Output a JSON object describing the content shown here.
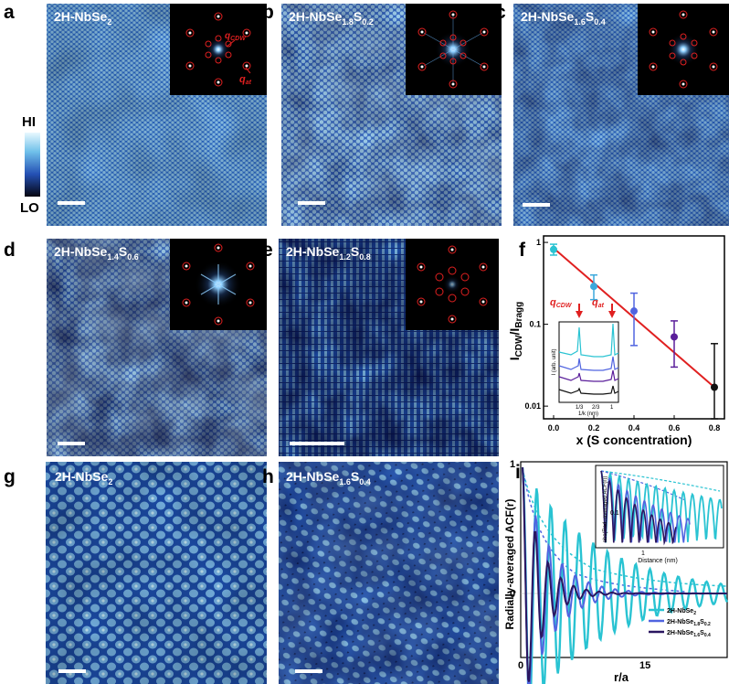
{
  "panel_labels": {
    "a": "a",
    "b": "b",
    "c": "c",
    "d": "d",
    "e": "e",
    "f": "f",
    "g": "g",
    "h": "h",
    "i": "i"
  },
  "colors": {
    "stm_dark": "#0d1530",
    "stm_mid": "#2a64c8",
    "stm_light": "#9fd8f0",
    "red": "#e02020",
    "cyan": "#29c3d2",
    "blue": "#5064e0",
    "indigo": "#3a1a8a",
    "purple": "#5a1e9a",
    "black": "#111111"
  },
  "images": {
    "a": {
      "title_main": "2H-NbSe",
      "title_sub": "2"
    },
    "b": {
      "title_main": "2H-NbSe",
      "title_sub1": "1.8",
      "title_mid": "S",
      "title_sub2": "0.2"
    },
    "c": {
      "title_main": "2H-NbSe",
      "title_sub1": "1.6",
      "title_mid": "S",
      "title_sub2": "0.4"
    },
    "d": {
      "title_main": "2H-NbSe",
      "title_sub1": "1.4",
      "title_mid": "S",
      "title_sub2": "0.6"
    },
    "e": {
      "title_main": "2H-NbSe",
      "title_sub1": "1.2",
      "title_mid": "S",
      "title_sub2": "0.8"
    },
    "g": {
      "title_main": "2H-NbSe",
      "title_sub": "2"
    },
    "h": {
      "title_main": "2H-NbSe",
      "title_sub1": "1.6",
      "title_mid": "S",
      "title_sub2": "0.4"
    }
  },
  "inset_a": {
    "q_cdw_main": "q",
    "q_cdw_sub": "CDW",
    "q_at_main": "q",
    "q_at_sub": "at"
  },
  "colorbar": {
    "hi": "HI",
    "lo": "LO"
  },
  "chart_data": [
    {
      "panel": "f",
      "type": "scatter",
      "xlabel": "x (S concentration)",
      "ylabel_main": "I",
      "ylabel_sub1": "CDW",
      "ylabel_mid": "/I",
      "ylabel_sub2": "Bragg",
      "xscale": "linear",
      "yscale": "log",
      "xlim": [
        -0.05,
        0.85
      ],
      "ylim": [
        0.007,
        1.2
      ],
      "xticks": [
        "0.0",
        "0.2",
        "0.4",
        "0.6",
        "0.8"
      ],
      "yticks": [
        "1",
        "0.1",
        "0.01"
      ],
      "points": [
        {
          "x": 0.0,
          "y": 0.82,
          "err_lo": 0.7,
          "err_hi": 0.95,
          "color": "#29c3d2"
        },
        {
          "x": 0.2,
          "y": 0.29,
          "err_lo": 0.2,
          "err_hi": 0.4,
          "color": "#3ba8dc"
        },
        {
          "x": 0.4,
          "y": 0.145,
          "err_lo": 0.055,
          "err_hi": 0.24,
          "color": "#5064e0"
        },
        {
          "x": 0.6,
          "y": 0.07,
          "err_lo": 0.03,
          "err_hi": 0.11,
          "color": "#5a1e9a"
        },
        {
          "x": 0.8,
          "y": 0.017,
          "err_lo": 0.007,
          "err_hi": 0.058,
          "color": "#111111"
        }
      ],
      "fit_line": {
        "x": [
          0.0,
          0.8
        ],
        "y": [
          0.85,
          0.017
        ],
        "color": "#e02020"
      },
      "inset": {
        "ylabel": "I (arb. unit)",
        "xlabel": "1/k (nm)",
        "xticks": [
          "1/3",
          "2/3",
          "1"
        ],
        "arrow_cdw_main": "q",
        "arrow_cdw_sub": "CDW",
        "arrow_at_main": "q",
        "arrow_at_sub": "at"
      }
    },
    {
      "panel": "i",
      "type": "line",
      "xlabel": "r/a",
      "ylabel": "Radially-averaged ACF(r)",
      "xticks": [
        "0",
        "15"
      ],
      "yticks": [
        "1",
        "0"
      ],
      "series": [
        {
          "name_main": "2H-NbSe",
          "name_sub": "2",
          "color": "#29c3d2"
        },
        {
          "name_main": "2H-NbSe",
          "name_sub1": "1.8",
          "name_mid": "S",
          "name_sub2": "0.2",
          "color": "#5064e0"
        },
        {
          "name_main": "2H-NbSe",
          "name_sub1": "1.6",
          "name_mid": "S",
          "name_sub2": "0.4",
          "color": "#2a1660"
        }
      ],
      "inset": {
        "ylabel": "abs(Rad.-averaged ACF(r))",
        "xlabel": "Distance (nm)",
        "xtick": "1",
        "ytick": "0.1"
      }
    }
  ]
}
